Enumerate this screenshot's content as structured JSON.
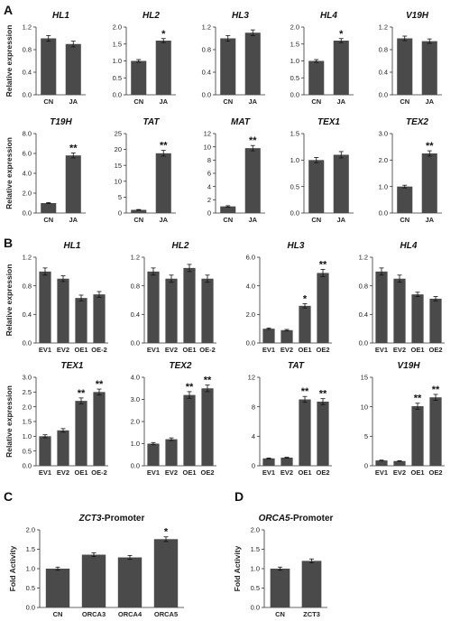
{
  "panels": [
    {
      "letter": "A"
    },
    {
      "letter": "B"
    },
    {
      "letter": "C"
    },
    {
      "letter": "D"
    }
  ],
  "chart_data": [
    {
      "panel": "A",
      "type": "bar",
      "title": "HL1",
      "title_italic": true,
      "ylabel": "Relative expression",
      "categories": [
        "CN",
        "JA"
      ],
      "values": [
        1.0,
        0.9
      ],
      "errors": [
        0.05,
        0.05
      ],
      "sig": [
        "",
        ""
      ],
      "ylim": [
        0,
        1.2
      ],
      "yticks": [
        "0.0",
        "0.4",
        "0.8",
        "1.2"
      ]
    },
    {
      "panel": "A",
      "type": "bar",
      "title": "HL2",
      "title_italic": true,
      "ylabel": "",
      "categories": [
        "CN",
        "JA"
      ],
      "values": [
        1.0,
        1.6
      ],
      "errors": [
        0.04,
        0.06
      ],
      "sig": [
        "",
        "*"
      ],
      "ylim": [
        0,
        2.0
      ],
      "yticks": [
        "0.0",
        "0.5",
        "1.0",
        "1.5",
        "2.0"
      ]
    },
    {
      "panel": "A",
      "type": "bar",
      "title": "HL3",
      "title_italic": true,
      "ylabel": "",
      "categories": [
        "CN",
        "JA"
      ],
      "values": [
        1.0,
        1.1
      ],
      "errors": [
        0.05,
        0.05
      ],
      "sig": [
        "",
        ""
      ],
      "ylim": [
        0,
        1.2
      ],
      "yticks": [
        "0.0",
        "0.4",
        "0.8",
        "1.2"
      ]
    },
    {
      "panel": "A",
      "type": "bar",
      "title": "HL4",
      "title_italic": true,
      "ylabel": "",
      "categories": [
        "CN",
        "JA"
      ],
      "values": [
        1.0,
        1.6
      ],
      "errors": [
        0.04,
        0.06
      ],
      "sig": [
        "",
        "*"
      ],
      "ylim": [
        0,
        2.0
      ],
      "yticks": [
        "0.0",
        "0.5",
        "1.0",
        "1.5",
        "2.0"
      ]
    },
    {
      "panel": "A",
      "type": "bar",
      "title": "V19H",
      "title_italic": true,
      "ylabel": "",
      "categories": [
        "CN",
        "JA"
      ],
      "values": [
        1.0,
        0.95
      ],
      "errors": [
        0.04,
        0.04
      ],
      "sig": [
        "",
        ""
      ],
      "ylim": [
        0,
        1.2
      ],
      "yticks": [
        "0.0",
        "0.4",
        "0.8",
        "1.2"
      ]
    },
    {
      "panel": "A",
      "type": "bar",
      "title": "T19H",
      "title_italic": true,
      "ylabel": "Relative expression",
      "categories": [
        "CN",
        "JA"
      ],
      "values": [
        1.0,
        5.8
      ],
      "errors": [
        0.05,
        0.25
      ],
      "sig": [
        "",
        "**"
      ],
      "ylim": [
        0,
        8.0
      ],
      "yticks": [
        "0.0",
        "2.0",
        "4.0",
        "6.0",
        "8.0"
      ]
    },
    {
      "panel": "A",
      "type": "bar",
      "title": "TAT",
      "title_italic": true,
      "ylabel": "",
      "categories": [
        "CN",
        "JA"
      ],
      "values": [
        1.0,
        18.8
      ],
      "errors": [
        0.1,
        0.9
      ],
      "sig": [
        "",
        "**"
      ],
      "ylim": [
        0,
        25
      ],
      "yticks": [
        "0",
        "5",
        "10",
        "15",
        "20",
        "25"
      ]
    },
    {
      "panel": "A",
      "type": "bar",
      "title": "MAT",
      "title_italic": true,
      "ylabel": "",
      "categories": [
        "CN",
        "JA"
      ],
      "values": [
        1.0,
        9.8
      ],
      "errors": [
        0.1,
        0.4
      ],
      "sig": [
        "",
        "**"
      ],
      "ylim": [
        0,
        12
      ],
      "yticks": [
        "0",
        "2",
        "4",
        "6",
        "8",
        "10",
        "12"
      ]
    },
    {
      "panel": "A",
      "type": "bar",
      "title": "TEX1",
      "title_italic": true,
      "ylabel": "",
      "categories": [
        "CN",
        "JA"
      ],
      "values": [
        1.0,
        1.1
      ],
      "errors": [
        0.05,
        0.06
      ],
      "sig": [
        "",
        ""
      ],
      "ylim": [
        0,
        1.5
      ],
      "yticks": [
        "0.0",
        "0.5",
        "1.0",
        "1.5"
      ]
    },
    {
      "panel": "A",
      "type": "bar",
      "title": "TEX2",
      "title_italic": true,
      "ylabel": "",
      "categories": [
        "CN",
        "JA"
      ],
      "values": [
        1.0,
        2.25
      ],
      "errors": [
        0.05,
        0.1
      ],
      "sig": [
        "",
        "**"
      ],
      "ylim": [
        0,
        3.0
      ],
      "yticks": [
        "0.0",
        "1.0",
        "2.0",
        "3.0"
      ]
    },
    {
      "panel": "B",
      "type": "bar",
      "title": "HL1",
      "title_italic": true,
      "ylabel": "Relative expression",
      "categories": [
        "EV1",
        "EV2",
        "OE1",
        "OE-2"
      ],
      "values": [
        1.0,
        0.9,
        0.63,
        0.68
      ],
      "errors": [
        0.05,
        0.04,
        0.04,
        0.04
      ],
      "sig": [
        "",
        "",
        "",
        ""
      ],
      "ylim": [
        0,
        1.2
      ],
      "yticks": [
        "0.0",
        "0.4",
        "0.8",
        "1.2"
      ]
    },
    {
      "panel": "B",
      "type": "bar",
      "title": "HL2",
      "title_italic": true,
      "ylabel": "",
      "categories": [
        "EV1",
        "EV2",
        "OE1",
        "OE-2"
      ],
      "values": [
        1.0,
        0.9,
        1.05,
        0.9
      ],
      "errors": [
        0.05,
        0.05,
        0.05,
        0.05
      ],
      "sig": [
        "",
        "",
        "",
        ""
      ],
      "ylim": [
        0,
        1.2
      ],
      "yticks": [
        "0.0",
        "0.4",
        "0.8",
        "1.2"
      ]
    },
    {
      "panel": "B",
      "type": "bar",
      "title": "HL3",
      "title_italic": true,
      "ylabel": "",
      "categories": [
        "EV1",
        "EV2",
        "OE1",
        "OE2"
      ],
      "values": [
        1.0,
        0.9,
        2.6,
        4.9
      ],
      "errors": [
        0.05,
        0.05,
        0.15,
        0.25
      ],
      "sig": [
        "",
        "",
        "*",
        "**"
      ],
      "ylim": [
        0,
        6.0
      ],
      "yticks": [
        "0.0",
        "2.0",
        "4.0",
        "6.0"
      ]
    },
    {
      "panel": "B",
      "type": "bar",
      "title": "HL4",
      "title_italic": true,
      "ylabel": "",
      "categories": [
        "EV1",
        "EV2",
        "OE1",
        "OE2"
      ],
      "values": [
        1.0,
        0.9,
        0.68,
        0.62
      ],
      "errors": [
        0.05,
        0.05,
        0.03,
        0.03
      ],
      "sig": [
        "",
        "",
        "",
        ""
      ],
      "ylim": [
        0,
        1.2
      ],
      "yticks": [
        "0.0",
        "0.4",
        "0.8",
        "1.2"
      ]
    },
    {
      "panel": "B",
      "type": "bar",
      "title": "TEX1",
      "title_italic": true,
      "ylabel": "Relative expression",
      "categories": [
        "EV1",
        "EV2",
        "OE1",
        "OE-2"
      ],
      "values": [
        1.0,
        1.2,
        2.2,
        2.5
      ],
      "errors": [
        0.05,
        0.06,
        0.1,
        0.1
      ],
      "sig": [
        "",
        "",
        "**",
        "**"
      ],
      "ylim": [
        0,
        3.0
      ],
      "yticks": [
        "0.0",
        "0.5",
        "1.0",
        "1.5",
        "2.0",
        "2.5",
        "3.0"
      ]
    },
    {
      "panel": "B",
      "type": "bar",
      "title": "TEX2",
      "title_italic": true,
      "ylabel": "",
      "categories": [
        "EV1",
        "EV2",
        "OE1",
        "OE2"
      ],
      "values": [
        1.0,
        1.2,
        3.2,
        3.5
      ],
      "errors": [
        0.05,
        0.06,
        0.15,
        0.15
      ],
      "sig": [
        "",
        "",
        "**",
        "**"
      ],
      "ylim": [
        0,
        4.0
      ],
      "yticks": [
        "0.0",
        "1.0",
        "2.0",
        "3.0",
        "4.0"
      ]
    },
    {
      "panel": "B",
      "type": "bar",
      "title": "TAT",
      "title_italic": true,
      "ylabel": "",
      "categories": [
        "EV1",
        "EV2",
        "OE1",
        "OE2"
      ],
      "values": [
        1.0,
        1.1,
        9.0,
        8.7
      ],
      "errors": [
        0.05,
        0.05,
        0.4,
        0.4
      ],
      "sig": [
        "",
        "",
        "**",
        "**"
      ],
      "ylim": [
        0,
        12
      ],
      "yticks": [
        "0",
        "4",
        "8",
        "12"
      ]
    },
    {
      "panel": "B",
      "type": "bar",
      "title": "V19H",
      "title_italic": true,
      "ylabel": "",
      "categories": [
        "EV1",
        "EV2",
        "OE1",
        "OE2"
      ],
      "values": [
        0.9,
        0.8,
        10.1,
        11.6
      ],
      "errors": [
        0.05,
        0.05,
        0.5,
        0.5
      ],
      "sig": [
        "",
        "",
        "**",
        "**"
      ],
      "ylim": [
        0,
        15
      ],
      "yticks": [
        "0",
        "5",
        "10",
        "15"
      ]
    },
    {
      "panel": "C",
      "type": "bar",
      "title": "ZCT3",
      "title_italic": true,
      "title_suffix": "-Promoter",
      "ylabel": "Fold Activity",
      "categories": [
        "CN",
        "ORCA3",
        "ORCA4",
        "ORCA5"
      ],
      "values": [
        1.0,
        1.36,
        1.29,
        1.76
      ],
      "errors": [
        0.04,
        0.05,
        0.05,
        0.06
      ],
      "sig": [
        "",
        "",
        "",
        "*"
      ],
      "ylim": [
        0,
        2.0
      ],
      "yticks": [
        "0.0",
        "0.5",
        "1.0",
        "1.5",
        "2.0"
      ]
    },
    {
      "panel": "D",
      "type": "bar",
      "title": "ORCA5",
      "title_italic": true,
      "title_suffix": "-Promoter",
      "ylabel": "Fold Activity",
      "categories": [
        "CN",
        "ZCT3"
      ],
      "values": [
        1.0,
        1.2
      ],
      "errors": [
        0.04,
        0.05
      ],
      "sig": [
        "",
        ""
      ],
      "ylim": [
        0,
        2.0
      ],
      "yticks": [
        "0.0",
        "0.5",
        "1.0",
        "1.5",
        "2.0"
      ]
    }
  ]
}
